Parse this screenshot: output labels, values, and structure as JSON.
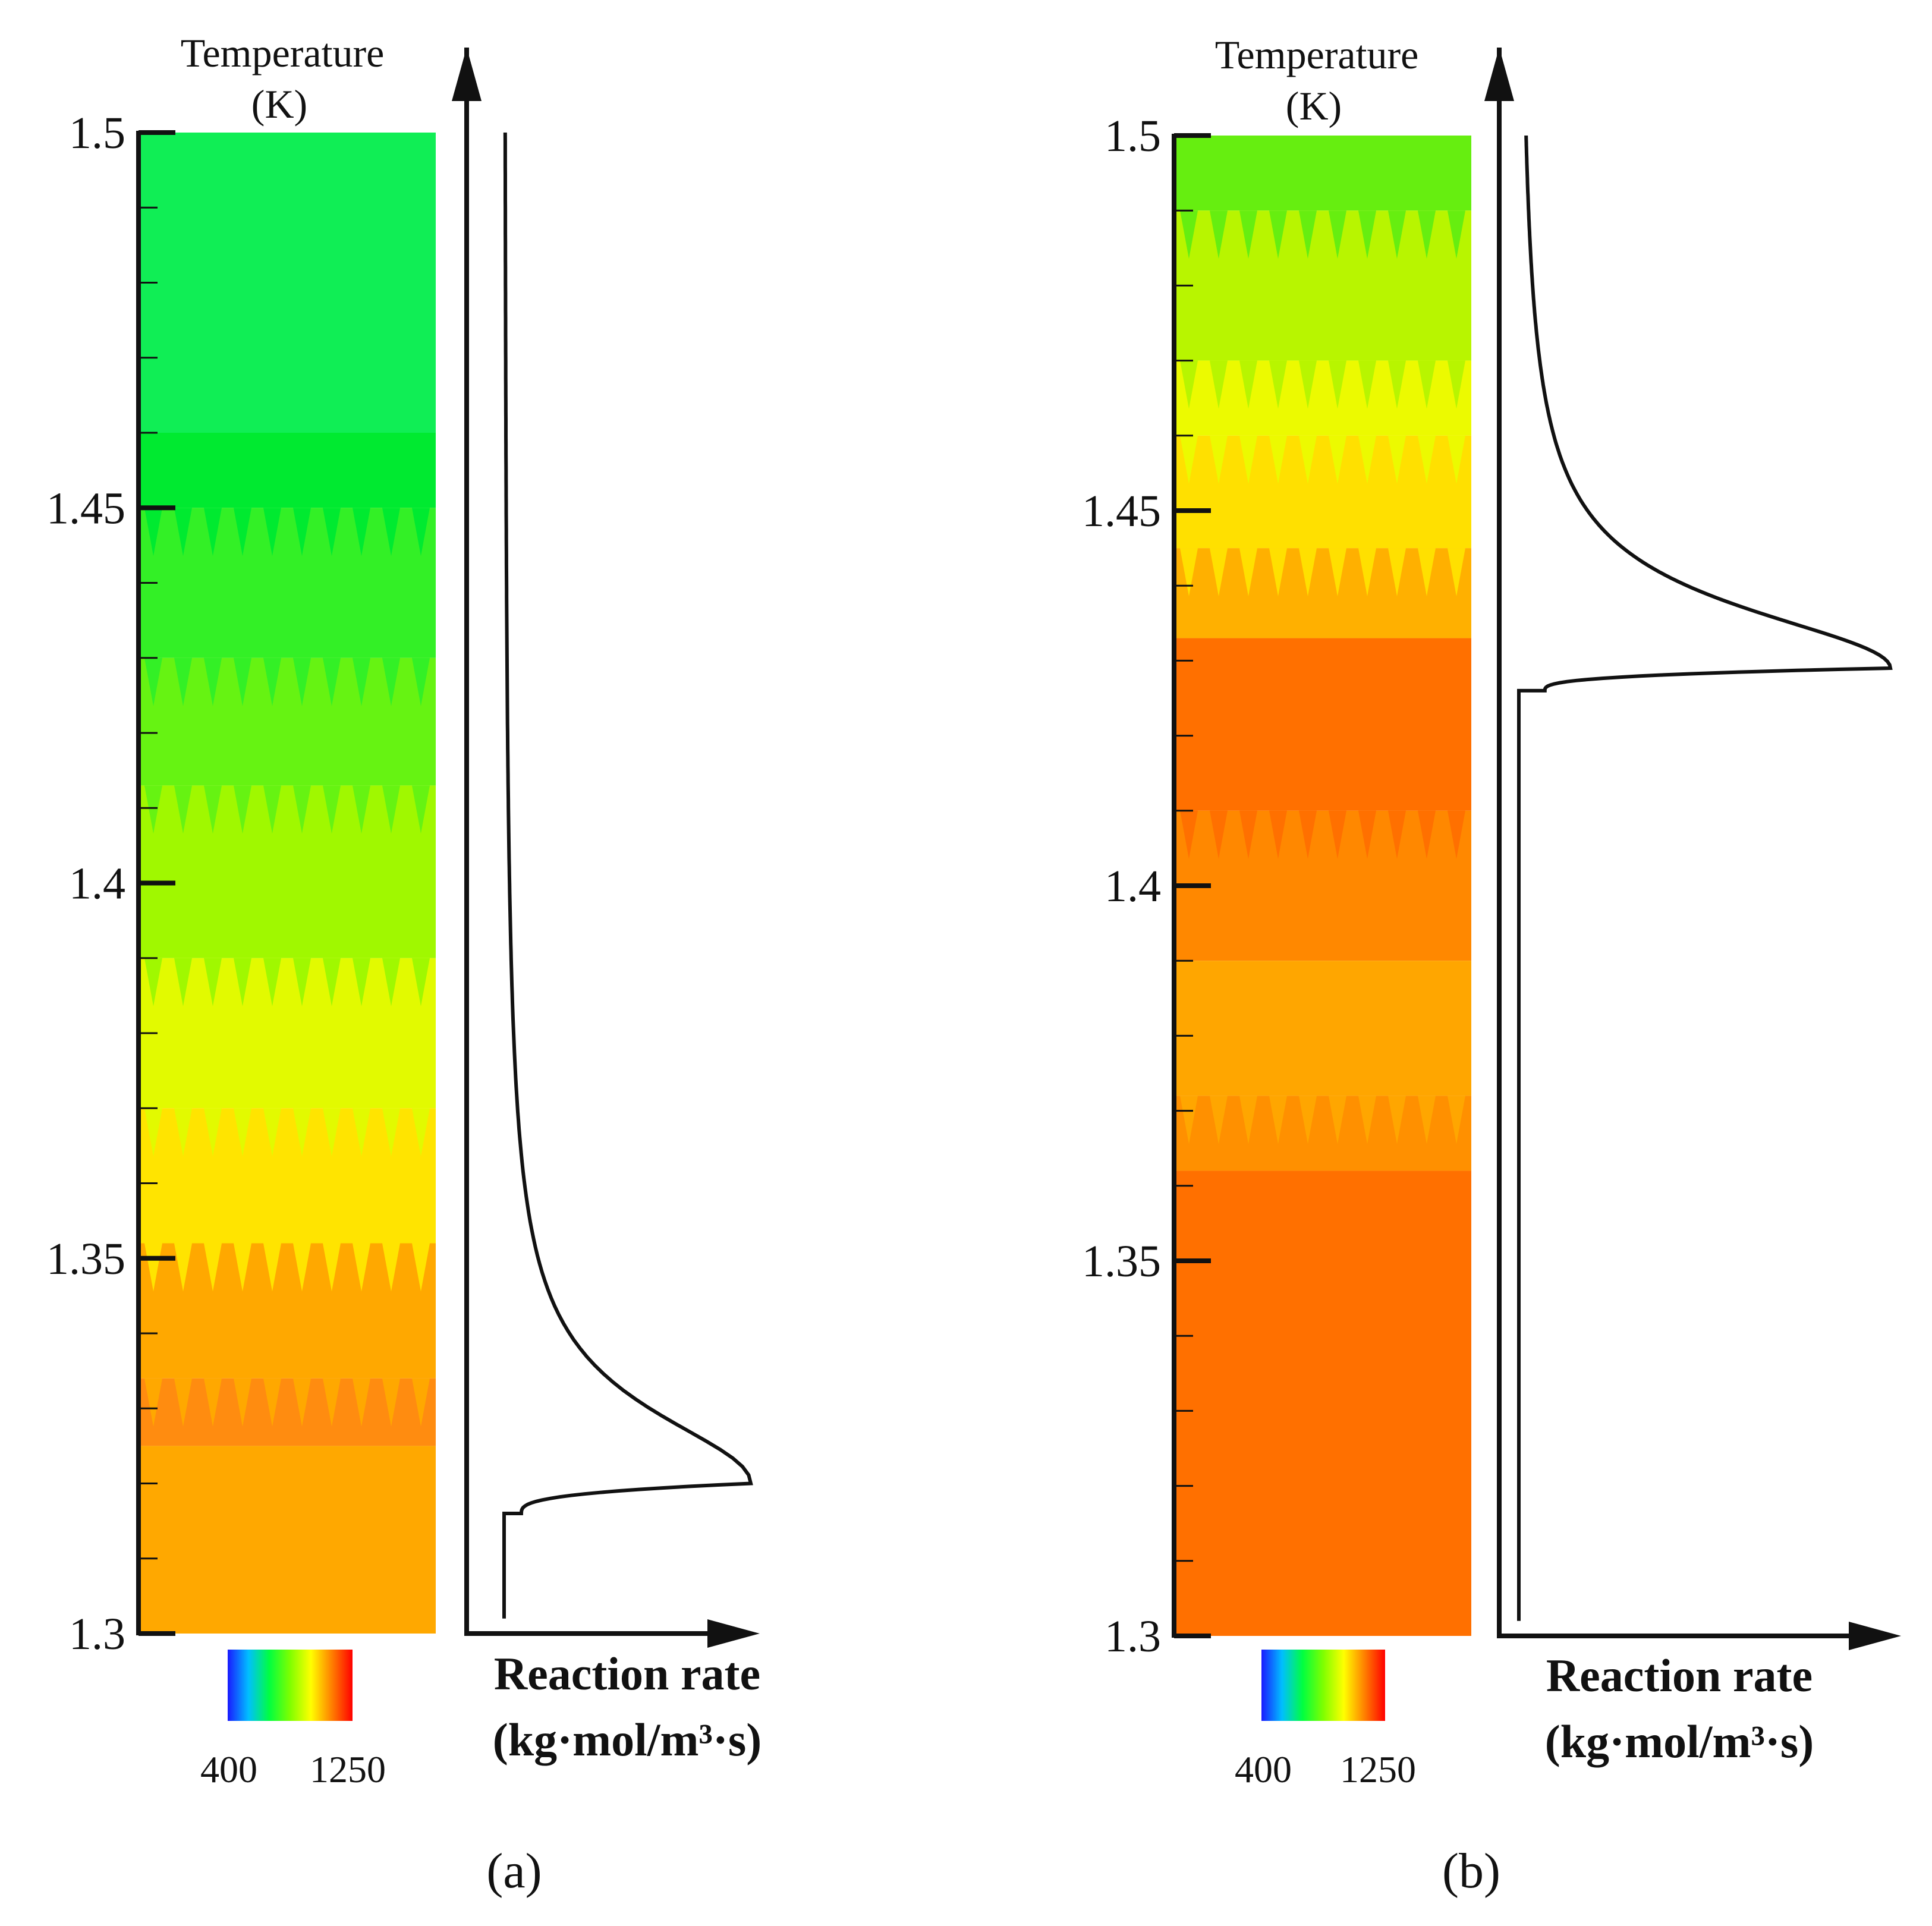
{
  "chart_data": [
    {
      "id": "a",
      "type": "contour-profile",
      "caption": "(a)",
      "title_line1": "Temperature",
      "title_line2": "(K)",
      "colorbar": {
        "min_label": "400",
        "max_label": "1250",
        "min": 400,
        "max": 1250,
        "colors": [
          "#1a1aff",
          "#00bfff",
          "#00ff40",
          "#7fff00",
          "#ffff00",
          "#ff8000",
          "#ff0000"
        ]
      },
      "y_axis": {
        "ticks": [
          1.5,
          1.45,
          1.4,
          1.35,
          1.3
        ],
        "tick_labels": [
          "1.5",
          "1.45",
          "1.4",
          "1.35",
          "1.3"
        ],
        "ylim": [
          1.3,
          1.5
        ],
        "minor_step": 0.01
      },
      "temperature_bands": [
        {
          "from": 1.46,
          "to": 1.5,
          "color": "#10ee55",
          "jagged": false
        },
        {
          "from": 1.45,
          "to": 1.46,
          "color": "#00ea30",
          "jagged": false
        },
        {
          "from": 1.43,
          "to": 1.45,
          "color": "#33f026",
          "jagged": true
        },
        {
          "from": 1.413,
          "to": 1.43,
          "color": "#66f312",
          "jagged": true
        },
        {
          "from": 1.39,
          "to": 1.413,
          "color": "#a0f800",
          "jagged": true
        },
        {
          "from": 1.37,
          "to": 1.39,
          "color": "#e2fa00",
          "jagged": true
        },
        {
          "from": 1.352,
          "to": 1.37,
          "color": "#ffe400",
          "jagged": true
        },
        {
          "from": 1.334,
          "to": 1.352,
          "color": "#ffa800",
          "jagged": true
        },
        {
          "from": 1.325,
          "to": 1.334,
          "color": "#ff8c10",
          "jagged": true
        },
        {
          "from": 1.3,
          "to": 1.325,
          "color": "#ffa800",
          "jagged": false
        }
      ],
      "x_label_line1": "Reaction rate",
      "x_label_line2": "(kg·mol/m³·s)",
      "reaction_rate": {
        "y_bottom": 1.302,
        "y_top": 1.5,
        "zero_until": 1.316,
        "peak_y": 1.32,
        "peak_value": 1.0,
        "jump_value": 0.07,
        "decay_scale": 0.012
      }
    },
    {
      "id": "b",
      "type": "contour-profile",
      "caption": "(b)",
      "title_line1": "Temperature",
      "title_line2": "(K)",
      "colorbar": {
        "min_label": "400",
        "max_label": "1250",
        "min": 400,
        "max": 1250,
        "colors": [
          "#1a1aff",
          "#00bfff",
          "#00ff40",
          "#7fff00",
          "#ffff00",
          "#ff8000",
          "#ff0000"
        ]
      },
      "y_axis": {
        "ticks": [
          1.5,
          1.45,
          1.4,
          1.35,
          1.3
        ],
        "tick_labels": [
          "1.5",
          "1.45",
          "1.4",
          "1.35",
          "1.3"
        ],
        "ylim": [
          1.3,
          1.5
        ],
        "minor_step": 0.01
      },
      "temperature_bands": [
        {
          "from": 1.49,
          "to": 1.5,
          "color": "#66ee10",
          "jagged": true
        },
        {
          "from": 1.47,
          "to": 1.49,
          "color": "#b8f500",
          "jagged": true
        },
        {
          "from": 1.46,
          "to": 1.47,
          "color": "#ecfa00",
          "jagged": true
        },
        {
          "from": 1.445,
          "to": 1.46,
          "color": "#ffe000",
          "jagged": true
        },
        {
          "from": 1.433,
          "to": 1.445,
          "color": "#ffb000",
          "jagged": true
        },
        {
          "from": 1.41,
          "to": 1.433,
          "color": "#ff7000",
          "jagged": false
        },
        {
          "from": 1.39,
          "to": 1.41,
          "color": "#ff8800",
          "jagged": true
        },
        {
          "from": 1.372,
          "to": 1.39,
          "color": "#ffa600",
          "jagged": false
        },
        {
          "from": 1.362,
          "to": 1.372,
          "color": "#ff9000",
          "jagged": true
        },
        {
          "from": 1.3,
          "to": 1.362,
          "color": "#ff7000",
          "jagged": false
        }
      ],
      "x_label_line1": "Reaction rate",
      "x_label_line2": "(kg·mol/m³·s)",
      "reaction_rate": {
        "y_bottom": 1.302,
        "y_top": 1.5,
        "zero_until": 1.426,
        "peak_y": 1.429,
        "peak_value": 1.0,
        "jump_value": 0.07,
        "decay_scale": 0.01
      }
    }
  ]
}
